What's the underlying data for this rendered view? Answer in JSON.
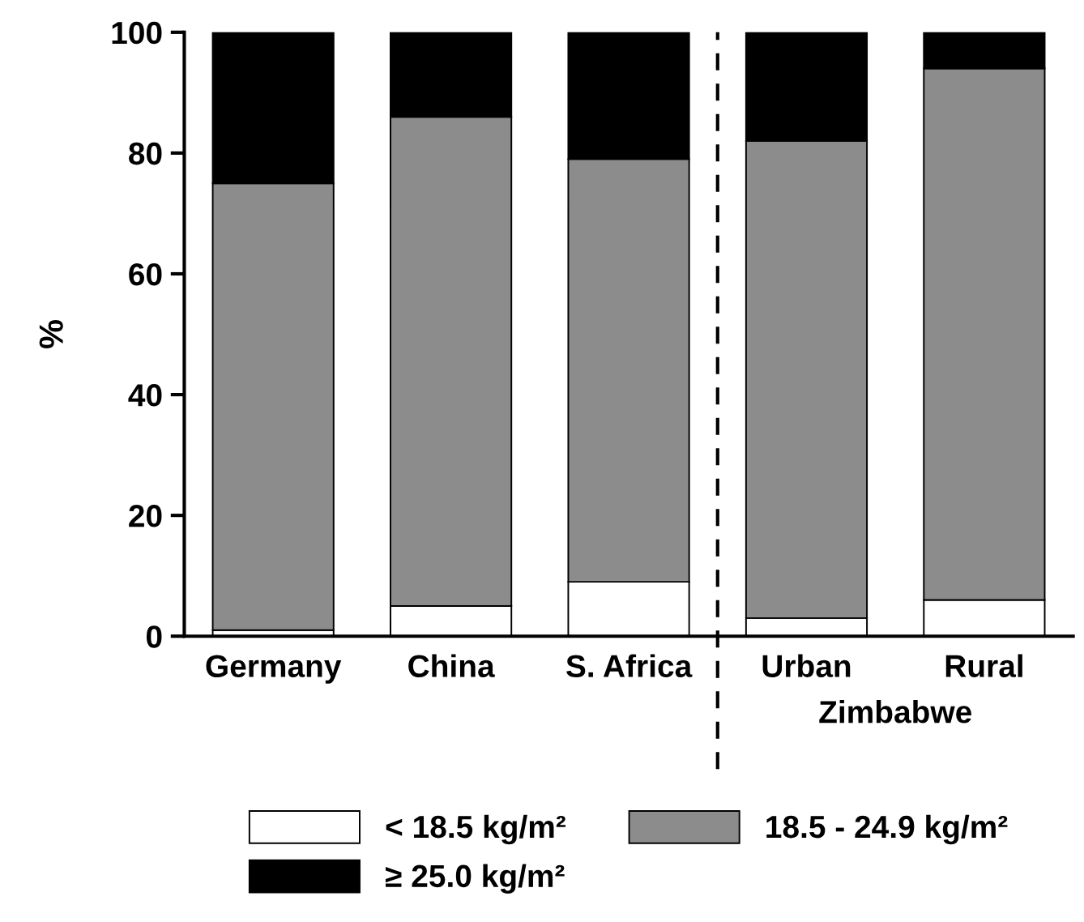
{
  "chart_data": {
    "type": "bar",
    "stacked": true,
    "ylabel": "%",
    "categories": [
      "Germany",
      "China",
      "S. Africa",
      "Urban",
      "Rural"
    ],
    "series": [
      {
        "name": "< 18.5 kg/m²",
        "color": "#ffffff",
        "values": [
          1,
          5,
          9,
          3,
          6
        ]
      },
      {
        "name": "18.5 - 24.9 kg/m²",
        "color": "#8c8c8c",
        "values": [
          74,
          81,
          70,
          79,
          88
        ]
      },
      {
        "name": "≥ 25.0 kg/m²",
        "color": "#000000",
        "values": [
          25,
          14,
          21,
          18,
          6
        ]
      }
    ],
    "ylim": [
      0,
      100
    ],
    "yticks": [
      0,
      20,
      40,
      60,
      80,
      100
    ],
    "annotations": [
      "Zimbabwe"
    ],
    "grid": false,
    "legend": "bottom"
  }
}
